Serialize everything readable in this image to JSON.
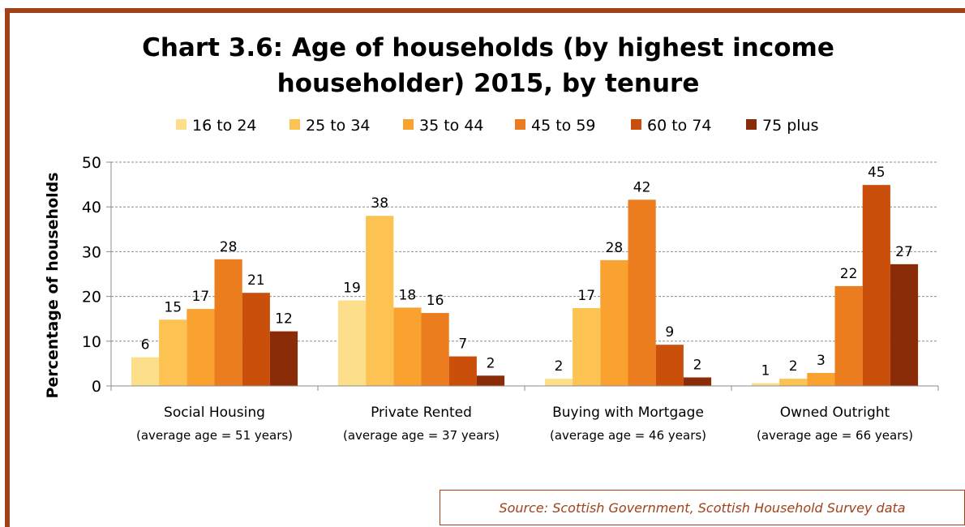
{
  "chart_data": {
    "type": "bar",
    "title_lines": [
      "Chart 3.6: Age of households (by highest income",
      "householder) 2015, by tenure"
    ],
    "ylabel": "Percentage of households",
    "xlabel": "",
    "ylim": [
      0,
      50
    ],
    "yticks": [
      0,
      10,
      20,
      30,
      40,
      50
    ],
    "grid": true,
    "legend_position": "top",
    "categories": [
      "Social Housing",
      "Private Rented",
      "Buying with Mortgage",
      "Owned Outright"
    ],
    "category_subtitles": [
      "(average age = 51 years)",
      "(average age = 37 years)",
      "(average age = 46 years)",
      "(average age = 66 years)"
    ],
    "series": [
      {
        "name": "16 to 24",
        "color": "#fdde8a",
        "values": [
          6.4,
          19.1,
          1.6,
          0.6
        ],
        "labels": [
          "6",
          "19",
          "2",
          "1"
        ]
      },
      {
        "name": "25 to 34",
        "color": "#fcc252",
        "values": [
          14.8,
          38.0,
          17.4,
          1.6
        ],
        "labels": [
          "15",
          "38",
          "17",
          "2"
        ]
      },
      {
        "name": "35 to 44",
        "color": "#f9a230",
        "values": [
          17.2,
          17.5,
          28.1,
          2.9
        ],
        "labels": [
          "17",
          "18",
          "28",
          "3"
        ]
      },
      {
        "name": "45 to 59",
        "color": "#ec7d1e",
        "values": [
          28.3,
          16.3,
          41.6,
          22.3
        ],
        "labels": [
          "28",
          "16",
          "42",
          "22"
        ]
      },
      {
        "name": "60 to 74",
        "color": "#c94f0b",
        "values": [
          20.8,
          6.6,
          9.2,
          44.9
        ],
        "labels": [
          "21",
          "7",
          "9",
          "45"
        ]
      },
      {
        "name": "75 plus",
        "color": "#8a2c07",
        "values": [
          12.2,
          2.3,
          1.9,
          27.2
        ],
        "labels": [
          "12",
          "2",
          "2",
          "27"
        ]
      }
    ]
  },
  "source": "Source: Scottish Government, Scottish Household Survey data",
  "colors": {
    "border": "#a0411a",
    "grid": "#8c8c8c",
    "axis": "#8c8c8c"
  }
}
